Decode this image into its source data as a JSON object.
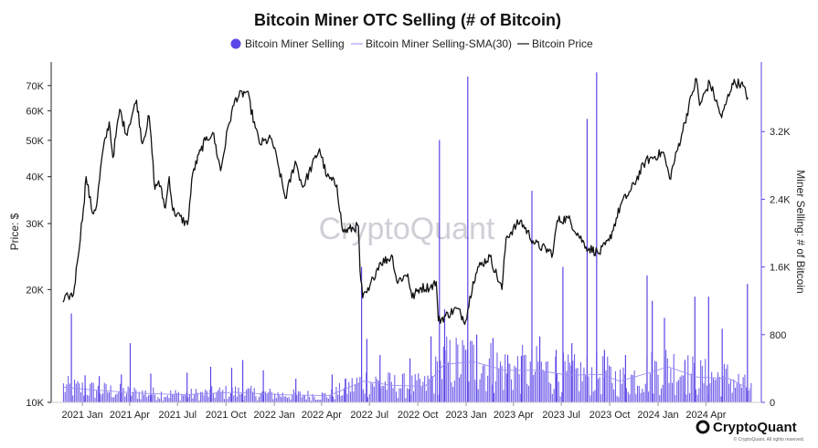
{
  "chart_data": {
    "type": "bar+line",
    "title": "Bitcoin Miner OTC Selling (# of Bitcoin)",
    "legend": [
      "Bitcoin Miner Selling",
      "Bitcoin Miner Selling-SMA(30)",
      "Bitcoin Price"
    ],
    "ylabel_left": "Price: $",
    "ylabel_right": "Miner Selling: # of Bitcoin",
    "y_left_scale": "log",
    "y_left_ticks": [
      {
        "label": "70K",
        "value": 70000
      },
      {
        "label": "60K",
        "value": 60000
      },
      {
        "label": "50K",
        "value": 50000
      },
      {
        "label": "40K",
        "value": 40000
      },
      {
        "label": "30K",
        "value": 30000
      },
      {
        "label": "20K",
        "value": 20000
      },
      {
        "label": "10K",
        "value": 10000
      }
    ],
    "y_left_lim": [
      10000,
      80000
    ],
    "y_right_ticks": [
      {
        "label": "3.2K",
        "value": 3200
      },
      {
        "label": "2.4K",
        "value": 2400
      },
      {
        "label": "1.6K",
        "value": 1600
      },
      {
        "label": "800",
        "value": 800
      },
      {
        "label": "0",
        "value": 0
      }
    ],
    "y_right_lim": [
      0,
      4000
    ],
    "x_lim": [
      "2020-11-20",
      "2024-06-28"
    ],
    "x_ticks": [
      {
        "label": "2021 Jan",
        "date": "2021-01-01"
      },
      {
        "label": "2021 Apr",
        "date": "2021-04-01"
      },
      {
        "label": "2021 Jul",
        "date": "2021-07-01"
      },
      {
        "label": "2021 Oct",
        "date": "2021-10-01"
      },
      {
        "label": "2022 Jan",
        "date": "2022-01-01"
      },
      {
        "label": "2022 Apr",
        "date": "2022-04-01"
      },
      {
        "label": "2022 Jul",
        "date": "2022-07-01"
      },
      {
        "label": "2022 Oct",
        "date": "2022-10-01"
      },
      {
        "label": "2023 Jan",
        "date": "2023-01-01"
      },
      {
        "label": "2023 Apr",
        "date": "2023-04-01"
      },
      {
        "label": "2023 Jul",
        "date": "2023-07-01"
      },
      {
        "label": "2023 Oct",
        "date": "2023-10-01"
      },
      {
        "label": "2024 Jan",
        "date": "2024-01-01"
      },
      {
        "label": "2024 Apr",
        "date": "2024-04-01"
      }
    ],
    "price_series": [
      [
        "2020-11-25",
        18500
      ],
      [
        "2020-12-05",
        19200
      ],
      [
        "2020-12-15",
        19400
      ],
      [
        "2020-12-22",
        23500
      ],
      [
        "2021-01-03",
        33000
      ],
      [
        "2021-01-08",
        40000
      ],
      [
        "2021-01-20",
        32000
      ],
      [
        "2021-01-28",
        33500
      ],
      [
        "2021-02-08",
        46000
      ],
      [
        "2021-02-21",
        56000
      ],
      [
        "2021-02-28",
        45000
      ],
      [
        "2021-03-13",
        60500
      ],
      [
        "2021-03-25",
        52000
      ],
      [
        "2021-04-14",
        64000
      ],
      [
        "2021-04-25",
        49000
      ],
      [
        "2021-05-08",
        58000
      ],
      [
        "2021-05-19",
        37000
      ],
      [
        "2021-05-26",
        39000
      ],
      [
        "2021-06-08",
        33000
      ],
      [
        "2021-06-15",
        40000
      ],
      [
        "2021-06-22",
        32500
      ],
      [
        "2021-07-20",
        29800
      ],
      [
        "2021-07-30",
        41000
      ],
      [
        "2021-08-14",
        47000
      ],
      [
        "2021-08-23",
        50000
      ],
      [
        "2021-09-06",
        52500
      ],
      [
        "2021-09-21",
        41500
      ],
      [
        "2021-10-06",
        55000
      ],
      [
        "2021-10-20",
        65000
      ],
      [
        "2021-11-10",
        67500
      ],
      [
        "2021-11-26",
        54000
      ],
      [
        "2021-12-04",
        49000
      ],
      [
        "2021-12-27",
        50500
      ],
      [
        "2022-01-10",
        42000
      ],
      [
        "2022-01-22",
        35000
      ],
      [
        "2022-02-10",
        44000
      ],
      [
        "2022-02-24",
        37500
      ],
      [
        "2022-03-28",
        47500
      ],
      [
        "2022-04-11",
        40000
      ],
      [
        "2022-04-30",
        38000
      ],
      [
        "2022-05-09",
        30000
      ],
      [
        "2022-05-12",
        28500
      ],
      [
        "2022-06-10",
        29500
      ],
      [
        "2022-06-13",
        22500
      ],
      [
        "2022-06-18",
        19000
      ],
      [
        "2022-06-30",
        19900
      ],
      [
        "2022-07-08",
        21500
      ],
      [
        "2022-07-20",
        23500
      ],
      [
        "2022-08-14",
        24500
      ],
      [
        "2022-08-22",
        21000
      ],
      [
        "2022-09-12",
        22000
      ],
      [
        "2022-09-20",
        19000
      ],
      [
        "2022-10-05",
        20200
      ],
      [
        "2022-10-25",
        20300
      ],
      [
        "2022-11-05",
        21000
      ],
      [
        "2022-11-09",
        16500
      ],
      [
        "2022-12-14",
        17800
      ],
      [
        "2022-12-31",
        16500
      ],
      [
        "2023-01-14",
        21000
      ],
      [
        "2023-01-25",
        23000
      ],
      [
        "2023-02-15",
        24500
      ],
      [
        "2023-03-10",
        20000
      ],
      [
        "2023-03-18",
        27500
      ],
      [
        "2023-04-14",
        30500
      ],
      [
        "2023-05-12",
        26500
      ],
      [
        "2023-06-15",
        25000
      ],
      [
        "2023-06-23",
        30500
      ],
      [
        "2023-07-14",
        31000
      ],
      [
        "2023-08-17",
        26000
      ],
      [
        "2023-09-11",
        25000
      ],
      [
        "2023-09-30",
        27000
      ],
      [
        "2023-10-23",
        34000
      ],
      [
        "2023-11-09",
        36500
      ],
      [
        "2023-12-08",
        44000
      ],
      [
        "2024-01-11",
        46500
      ],
      [
        "2024-01-23",
        39500
      ],
      [
        "2024-02-15",
        52000
      ],
      [
        "2024-03-05",
        66000
      ],
      [
        "2024-03-14",
        73000
      ],
      [
        "2024-03-20",
        62000
      ],
      [
        "2024-04-08",
        71500
      ],
      [
        "2024-05-01",
        57500
      ],
      [
        "2024-05-21",
        71000
      ],
      [
        "2024-06-07",
        71000
      ],
      [
        "2024-06-20",
        65000
      ]
    ],
    "selling_spikes": [
      [
        "2020-12-10",
        1050
      ],
      [
        "2021-01-05",
        320
      ],
      [
        "2021-02-01",
        310
      ],
      [
        "2021-03-15",
        330
      ],
      [
        "2021-04-01",
        700
      ],
      [
        "2021-05-10",
        340
      ],
      [
        "2021-07-18",
        350
      ],
      [
        "2021-09-01",
        420
      ],
      [
        "2021-10-11",
        410
      ],
      [
        "2021-11-01",
        500
      ],
      [
        "2021-12-10",
        380
      ],
      [
        "2022-02-10",
        280
      ],
      [
        "2022-04-20",
        330
      ],
      [
        "2022-05-15",
        280
      ],
      [
        "2022-06-15",
        1600
      ],
      [
        "2022-06-25",
        750
      ],
      [
        "2022-07-20",
        560
      ],
      [
        "2022-09-15",
        520
      ],
      [
        "2022-10-25",
        780
      ],
      [
        "2022-11-10",
        3100
      ],
      [
        "2022-11-20",
        1100
      ],
      [
        "2023-01-03",
        3850
      ],
      [
        "2023-01-20",
        800
      ],
      [
        "2023-02-20",
        760
      ],
      [
        "2023-03-20",
        560
      ],
      [
        "2023-04-15",
        550
      ],
      [
        "2023-05-05",
        2500
      ],
      [
        "2023-05-20",
        780
      ],
      [
        "2023-06-20",
        620
      ],
      [
        "2023-07-03",
        1600
      ],
      [
        "2023-07-20",
        700
      ],
      [
        "2023-08-18",
        3350
      ],
      [
        "2023-09-05",
        3900
      ],
      [
        "2023-09-20",
        620
      ],
      [
        "2023-10-30",
        560
      ],
      [
        "2023-12-10",
        1500
      ],
      [
        "2023-12-20",
        1200
      ],
      [
        "2024-01-12",
        1000
      ],
      [
        "2024-02-20",
        500
      ],
      [
        "2024-03-10",
        1250
      ],
      [
        "2024-04-05",
        1250
      ],
      [
        "2024-05-01",
        870
      ],
      [
        "2024-06-18",
        1400
      ]
    ],
    "sma_series": [
      [
        "2020-11-25",
        180
      ],
      [
        "2021-01-15",
        150
      ],
      [
        "2021-04-15",
        110
      ],
      [
        "2021-07-15",
        90
      ],
      [
        "2021-10-15",
        120
      ],
      [
        "2022-01-15",
        90
      ],
      [
        "2022-04-15",
        80
      ],
      [
        "2022-06-20",
        250
      ],
      [
        "2022-08-15",
        200
      ],
      [
        "2022-10-15",
        190
      ],
      [
        "2022-11-20",
        450
      ],
      [
        "2023-01-15",
        480
      ],
      [
        "2023-03-15",
        380
      ],
      [
        "2023-05-15",
        380
      ],
      [
        "2023-07-15",
        320
      ],
      [
        "2023-09-15",
        330
      ],
      [
        "2023-10-20",
        250
      ],
      [
        "2023-12-15",
        350
      ],
      [
        "2024-01-20",
        420
      ],
      [
        "2024-03-15",
        300
      ],
      [
        "2024-05-15",
        280
      ],
      [
        "2024-06-25",
        150
      ]
    ],
    "grid": false,
    "legend_placement": "top-center",
    "colors": {
      "selling": "#5a46e6",
      "sma": "#9a8ff2",
      "price": "#111111",
      "legend_dot": "#5a46e6"
    },
    "watermark": "CryptoQuant",
    "brand": "CryptoQuant",
    "brand_note": "© CryptoQuant. All rights reserved."
  }
}
